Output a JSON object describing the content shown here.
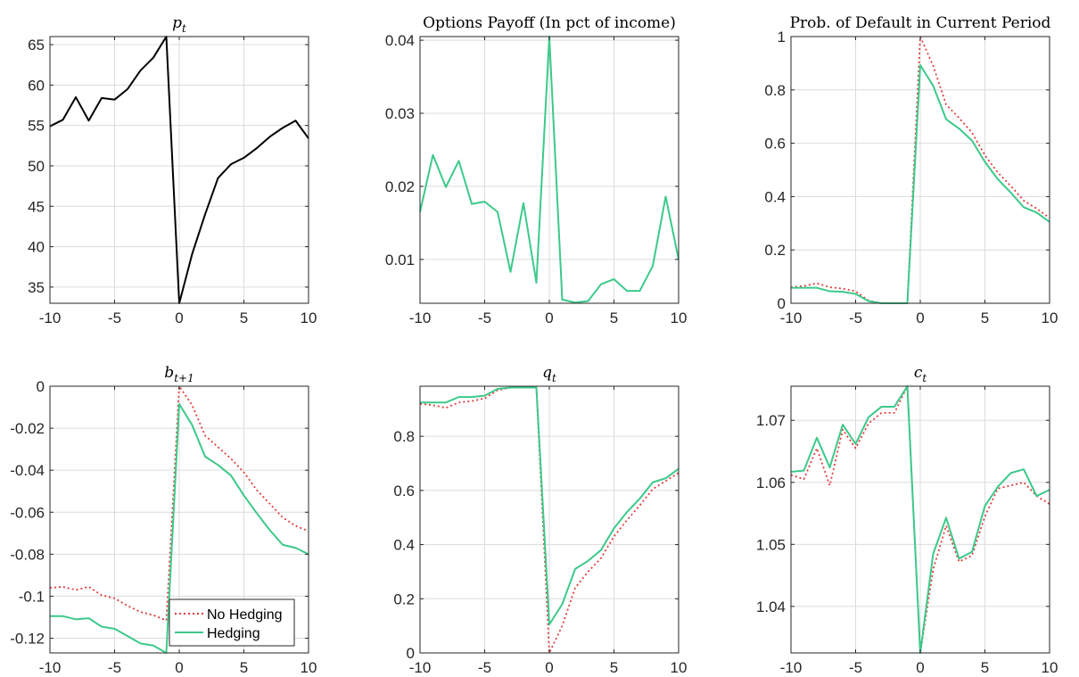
{
  "chart_data": [
    {
      "type": "line",
      "title": "p",
      "title_sub": "t",
      "xlim": [
        -10,
        10
      ],
      "ylim": [
        33,
        66
      ],
      "xticks": [
        -10,
        -5,
        0,
        5,
        10
      ],
      "yticks": [
        35,
        40,
        45,
        50,
        55,
        60,
        65
      ],
      "grid": true,
      "x": [
        -10,
        -9,
        -8,
        -7,
        -6,
        -5,
        -4,
        -3,
        -2,
        -1,
        0,
        1,
        2,
        3,
        4,
        5,
        6,
        7,
        8,
        9,
        10
      ],
      "series": [
        {
          "color": "#000000",
          "style": "solid",
          "values": [
            54.9,
            55.7,
            58.5,
            55.6,
            58.4,
            58.2,
            59.5,
            61.8,
            63.4,
            66.0,
            33.0,
            39.1,
            44.0,
            48.5,
            50.2,
            51.0,
            52.2,
            53.6,
            54.7,
            55.6,
            53.4
          ]
        }
      ]
    },
    {
      "type": "line",
      "title": "Options Payoff (In pct of income)",
      "title_sub": "",
      "xlim": [
        -10,
        10
      ],
      "ylim": [
        0.004,
        0.0405
      ],
      "xticks": [
        -10,
        -5,
        0,
        5,
        10
      ],
      "yticks": [
        0.01,
        0.02,
        0.03,
        0.04
      ],
      "grid": true,
      "x": [
        -10,
        -9,
        -8,
        -7,
        -6,
        -5,
        -4,
        -3,
        -2,
        -1,
        0,
        1,
        2,
        3,
        4,
        5,
        6,
        7,
        8,
        9,
        10
      ],
      "series": [
        {
          "color": "#3cc98a",
          "style": "solid",
          "values": [
            0.0165,
            0.0243,
            0.0199,
            0.0235,
            0.0176,
            0.0179,
            0.0165,
            0.0083,
            0.0177,
            0.0068,
            0.0405,
            0.0045,
            0.0041,
            0.0043,
            0.0066,
            0.0073,
            0.0057,
            0.0057,
            0.0091,
            0.0186,
            0.01
          ]
        }
      ]
    },
    {
      "type": "line",
      "title": "Prob. of Default in Current Period",
      "title_sub": "",
      "xlim": [
        -10,
        10
      ],
      "ylim": [
        0,
        1
      ],
      "xticks": [
        -10,
        -5,
        0,
        5,
        10
      ],
      "yticks": [
        0,
        0.2,
        0.4,
        0.6,
        0.8,
        1
      ],
      "grid": true,
      "x": [
        -10,
        -9,
        -8,
        -7,
        -6,
        -5,
        -4,
        -3,
        -2,
        -1,
        0,
        1,
        2,
        3,
        4,
        5,
        6,
        7,
        8,
        9,
        10
      ],
      "series": [
        {
          "name": "No Hedging",
          "color": "#e23b3b",
          "style": "dotted",
          "values": [
            0.06,
            0.065,
            0.075,
            0.06,
            0.055,
            0.045,
            0.01,
            0.0,
            0.0,
            0.0,
            1.0,
            0.89,
            0.745,
            0.695,
            0.64,
            0.555,
            0.49,
            0.44,
            0.385,
            0.355,
            0.32
          ]
        },
        {
          "name": "Hedging",
          "color": "#3cc98a",
          "style": "solid",
          "values": [
            0.058,
            0.058,
            0.058,
            0.045,
            0.043,
            0.035,
            0.008,
            0.0,
            0.0,
            0.0,
            0.893,
            0.815,
            0.69,
            0.655,
            0.61,
            0.53,
            0.465,
            0.415,
            0.36,
            0.34,
            0.305
          ]
        }
      ]
    },
    {
      "type": "line",
      "title": "b",
      "title_sub": "t+1",
      "xlim": [
        -10,
        10
      ],
      "ylim": [
        -0.127,
        0
      ],
      "xticks": [
        -10,
        -5,
        0,
        5,
        10
      ],
      "yticks": [
        -0.12,
        -0.1,
        -0.08,
        -0.06,
        -0.04,
        -0.02,
        0
      ],
      "yticklabels": [
        "-0.12",
        "-0.1",
        "-0.08",
        "-0.06",
        "-0.04",
        "-0.02",
        "0"
      ],
      "grid": true,
      "legend": {
        "position": "bottom-right-of-zero",
        "entries": [
          "No Hedging",
          "Hedging"
        ]
      },
      "x": [
        -10,
        -9,
        -8,
        -7,
        -6,
        -5,
        -4,
        -3,
        -2,
        -1,
        0,
        1,
        2,
        3,
        4,
        5,
        6,
        7,
        8,
        9,
        10
      ],
      "series": [
        {
          "name": "No Hedging",
          "color": "#e23b3b",
          "style": "dotted",
          "values": [
            -0.096,
            -0.0955,
            -0.097,
            -0.0955,
            -0.0995,
            -0.101,
            -0.1045,
            -0.1075,
            -0.109,
            -0.1115,
            0.0,
            -0.009,
            -0.0235,
            -0.029,
            -0.0345,
            -0.041,
            -0.0495,
            -0.056,
            -0.0625,
            -0.0665,
            -0.069
          ]
        },
        {
          "name": "Hedging",
          "color": "#3cc98a",
          "style": "solid",
          "values": [
            -0.1095,
            -0.1095,
            -0.111,
            -0.1105,
            -0.1145,
            -0.1155,
            -0.119,
            -0.1225,
            -0.1235,
            -0.127,
            -0.0085,
            -0.0185,
            -0.0335,
            -0.0375,
            -0.0425,
            -0.052,
            -0.0605,
            -0.0685,
            -0.0755,
            -0.077,
            -0.08
          ]
        }
      ]
    },
    {
      "type": "line",
      "title": "q",
      "title_sub": "t",
      "xlim": [
        -10,
        10
      ],
      "ylim": [
        0,
        0.985
      ],
      "xticks": [
        -10,
        -5,
        0,
        5,
        10
      ],
      "yticks": [
        0,
        0.2,
        0.4,
        0.6,
        0.8
      ],
      "grid": true,
      "x": [
        -10,
        -9,
        -8,
        -7,
        -6,
        -5,
        -4,
        -3,
        -2,
        -1,
        0,
        1,
        2,
        3,
        4,
        5,
        6,
        7,
        8,
        9,
        10
      ],
      "series": [
        {
          "name": "No Hedging",
          "color": "#e23b3b",
          "style": "dotted",
          "values": [
            0.92,
            0.915,
            0.905,
            0.925,
            0.93,
            0.94,
            0.97,
            0.98,
            0.98,
            0.98,
            0.0,
            0.1,
            0.24,
            0.3,
            0.35,
            0.43,
            0.49,
            0.545,
            0.605,
            0.635,
            0.665
          ]
        },
        {
          "name": "Hedging",
          "color": "#3cc98a",
          "style": "solid",
          "values": [
            0.925,
            0.925,
            0.925,
            0.945,
            0.945,
            0.95,
            0.975,
            0.98,
            0.98,
            0.98,
            0.105,
            0.18,
            0.31,
            0.34,
            0.38,
            0.46,
            0.52,
            0.57,
            0.63,
            0.645,
            0.68
          ]
        }
      ]
    },
    {
      "type": "line",
      "title": "c",
      "title_sub": "t",
      "xlim": [
        -10,
        10
      ],
      "ylim": [
        1.0325,
        1.0755
      ],
      "xticks": [
        -10,
        -5,
        0,
        5,
        10
      ],
      "yticks": [
        1.04,
        1.05,
        1.06,
        1.07
      ],
      "grid": true,
      "x": [
        -10,
        -9,
        -8,
        -7,
        -6,
        -5,
        -4,
        -3,
        -2,
        -1,
        0,
        1,
        2,
        3,
        4,
        5,
        6,
        7,
        8,
        9,
        10
      ],
      "series": [
        {
          "name": "No Hedging",
          "color": "#e23b3b",
          "style": "dotted",
          "values": [
            1.0612,
            1.0605,
            1.0655,
            1.0595,
            1.0685,
            1.0655,
            1.0695,
            1.0712,
            1.0712,
            1.0755,
            1.0325,
            1.046,
            1.053,
            1.0472,
            1.0482,
            1.0545,
            1.059,
            1.0595,
            1.06,
            1.0578,
            1.0565
          ]
        },
        {
          "name": "Hedging",
          "color": "#3cc98a",
          "style": "solid",
          "values": [
            1.0617,
            1.0619,
            1.0672,
            1.0624,
            1.0693,
            1.0662,
            1.0705,
            1.0722,
            1.0722,
            1.0755,
            1.0325,
            1.0485,
            1.0543,
            1.0477,
            1.0488,
            1.0562,
            1.0593,
            1.0615,
            1.0621,
            1.0578,
            1.0588
          ]
        }
      ]
    }
  ]
}
